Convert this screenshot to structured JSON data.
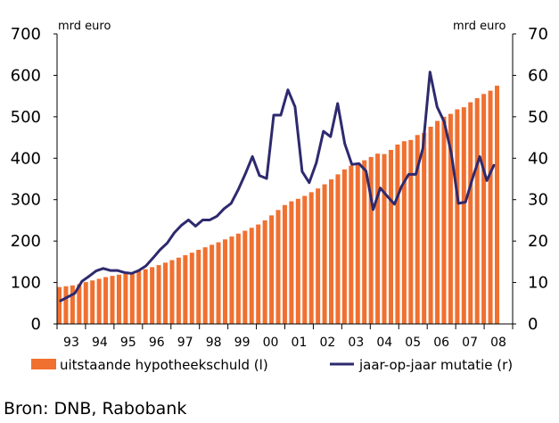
{
  "chart_data": {
    "type": "bar",
    "x_tick_labels": [
      "93",
      "94",
      "95",
      "96",
      "97",
      "98",
      "99",
      "00",
      "01",
      "02",
      "03",
      "04",
      "05",
      "06",
      "07",
      "08"
    ],
    "y_left": {
      "unit": "mrd euro",
      "min": 0,
      "max": 700,
      "ticks": [
        0,
        100,
        200,
        300,
        400,
        500,
        600,
        700
      ]
    },
    "y_right": {
      "unit": "mrd euro",
      "min": 0,
      "max": 70,
      "ticks": [
        0,
        10,
        20,
        30,
        40,
        50,
        60,
        70
      ]
    },
    "legend_position": "bottom",
    "series": [
      {
        "name": "uitstaande hypotheekschuld (l)",
        "type": "bar",
        "axis": "left",
        "color": "#f07030",
        "values": [
          89,
          91,
          93,
          96,
          101,
          105,
          109,
          113,
          116,
          119,
          121,
          124,
          128,
          132,
          137,
          142,
          148,
          154,
          160,
          166,
          172,
          179,
          185,
          191,
          197,
          204,
          211,
          218,
          225,
          232,
          240,
          250,
          262,
          275,
          287,
          296,
          302,
          309,
          318,
          327,
          337,
          349,
          361,
          373,
          382,
          388,
          395,
          403,
          411,
          410,
          420,
          433,
          441,
          444,
          456,
          461,
          476,
          490,
          500,
          507,
          518,
          523,
          535,
          545,
          555,
          563,
          575
        ]
      },
      {
        "name": "jaar-op-jaar mutatie (r)",
        "type": "line",
        "axis": "right",
        "color": "#2e2a6e",
        "values": [
          5.6,
          6.5,
          7.4,
          10.3,
          11.5,
          12.8,
          13.4,
          12.9,
          12.9,
          12.4,
          12.2,
          12.9,
          14.0,
          15.9,
          17.9,
          19.5,
          22.0,
          23.8,
          25.1,
          23.6,
          25.1,
          25.1,
          26.0,
          27.8,
          29.1,
          32.4,
          36.2,
          40.4,
          35.8,
          35.1,
          50.4,
          50.4,
          56.5,
          52.4,
          36.8,
          34.1,
          38.9,
          46.5,
          45.2,
          53.2,
          43.5,
          38.5,
          38.7,
          36.9,
          27.6,
          32.8,
          30.8,
          28.9,
          33.2,
          36.1,
          36.1,
          42.4,
          60.8,
          52.4,
          48.8,
          41.2,
          29.1,
          29.4,
          35.2,
          40.4,
          34.6,
          38.3
        ]
      }
    ]
  },
  "source_text": "Bron: DNB, Rabobank"
}
